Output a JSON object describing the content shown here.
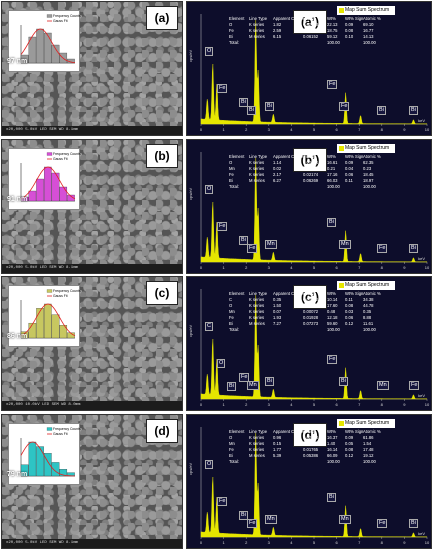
{
  "panels": [
    {
      "sem_label": "(a)",
      "spec_label": "(a’)",
      "size": "97 nm",
      "hist_color": "#9a9a9a",
      "legend": [
        "Frequency Counts",
        "Gauss Fit"
      ],
      "hist_values": [
        8,
        26,
        34,
        30,
        18,
        10,
        4
      ],
      "sem_footer": "x20,000   5.0kV   LED   SEM   WD 8.1mm",
      "spec_title": "Map Sum Spectrum",
      "table": {
        "header": [
          "Element",
          "Line Type",
          "Apparent Concentration",
          "k Ratio",
          "Wt%",
          "Wt% Sigma",
          "Atomic %"
        ],
        "rows": [
          [
            "O",
            "K series",
            "1.82",
            "0.00613",
            "22.13",
            "0.09",
            "69.10"
          ],
          [
            "Fe",
            "K series",
            "2.59",
            "0.02585",
            "18.75",
            "0.08",
            "16.77"
          ],
          [
            "Bi",
            "M series",
            "6.15",
            "0.06152",
            "59.12",
            "0.10",
            "14.13"
          ],
          [
            "Total:",
            "",
            "",
            "",
            "100.00",
            "",
            "100.00"
          ]
        ]
      },
      "peaks": [
        "O",
        "Fe",
        "Bi",
        "Bi",
        "Bi",
        "Fe",
        "Fe",
        "Bi",
        "Bi"
      ]
    },
    {
      "sem_label": "(b)",
      "spec_label": "(b’)",
      "size": "91 nm",
      "hist_color": "#d64fd6",
      "legend": [
        "Frequency Counts",
        "Gauss Fit"
      ],
      "hist_values": [
        4,
        10,
        22,
        34,
        28,
        14,
        6
      ],
      "sem_footer": "x20,000   5.0kV   LED   SEM   WD 8.1mm",
      "spec_title": "Map Sum Spectrum",
      "table": {
        "header": [
          "Element",
          "Line Type",
          "Apparent Concentration",
          "k Ratio",
          "Wt%",
          "Wt% Sigma",
          "Atomic %"
        ],
        "rows": [
          [
            "O",
            "K series",
            "1.14",
            "0.00384",
            "16.61",
            "0.09",
            "62.35"
          ],
          [
            "Mn",
            "K series",
            "0.02",
            "0.00025",
            "0.21",
            "0.04",
            "0.23"
          ],
          [
            "Fe",
            "K series",
            "2.17",
            "0.02174",
            "17.16",
            "0.06",
            "18.45"
          ],
          [
            "Bi",
            "M series",
            "6.27",
            "0.06269",
            "66.03",
            "0.11",
            "18.97"
          ],
          [
            "Total:",
            "",
            "",
            "",
            "100.00",
            "",
            "100.00"
          ]
        ]
      },
      "peaks": [
        "O",
        "Fe",
        "Bi",
        "Mn",
        "Fe",
        "Bi",
        "Mn",
        "Fe",
        "Bi"
      ]
    },
    {
      "sem_label": "(c)",
      "spec_label": "(c’)",
      "size": "86 nm",
      "hist_color": "#c7c760",
      "legend": [
        "Frequency Counts",
        "Gauss Fit"
      ],
      "hist_values": [
        6,
        14,
        28,
        32,
        22,
        12,
        5
      ],
      "sem_footer": "x20,000   10.0kV   LED   SEM   WD 8.0mm",
      "spec_title": "Map Sum Spectrum",
      "table": {
        "header": [
          "Element",
          "Line Type",
          "Apparent Concentration",
          "k Ratio",
          "Wt%",
          "Wt% Sigma",
          "Atomic %"
        ],
        "rows": [
          [
            "C",
            "K series",
            "0.35",
            "0.00352",
            "10.14",
            "0.11",
            "34.38"
          ],
          [
            "O",
            "K series",
            "1.50",
            "0.00506",
            "17.60",
            "0.08",
            "44.78"
          ],
          [
            "Mn",
            "K series",
            "0.07",
            "0.00072",
            "0.48",
            "0.03",
            "0.35"
          ],
          [
            "Fe",
            "K series",
            "1.93",
            "0.01928",
            "12.18",
            "0.06",
            "8.88"
          ],
          [
            "Bi",
            "M series",
            "7.27",
            "0.07273",
            "59.60",
            "0.12",
            "11.61"
          ],
          [
            "Total:",
            "",
            "",
            "",
            "100.00",
            "",
            "100.00"
          ]
        ]
      },
      "peaks": [
        "C",
        "O",
        "Fe",
        "Bi",
        "Mn",
        "Fe",
        "Bi",
        "Mn",
        "Fe",
        "Bi"
      ]
    },
    {
      "sem_label": "(d)",
      "spec_label": "(d’)",
      "size": "79 nm",
      "hist_color": "#2ec4c4",
      "legend": [
        "Frequency Counts",
        "Gauss Fit"
      ],
      "hist_values": [
        10,
        30,
        26,
        20,
        12,
        6,
        3
      ],
      "sem_footer": "x20,000   5.0kV   LED   SEM   WD 8.1mm",
      "spec_title": "Map Sum Spectrum",
      "table": {
        "header": [
          "Element",
          "Line Type",
          "Apparent Concentration",
          "k Ratio",
          "Wt%",
          "Wt% Sigma",
          "Atomic %"
        ],
        "rows": [
          [
            "O",
            "K series",
            "0.96",
            "0.00323",
            "16.37",
            "0.09",
            "61.86"
          ],
          [
            "Mn",
            "K series",
            "0.15",
            "0.00146",
            "1.40",
            "0.05",
            "1.54"
          ],
          [
            "Fe",
            "K series",
            "1.77",
            "0.01765",
            "16.14",
            "0.08",
            "17.48"
          ],
          [
            "Bi",
            "M series",
            "5.39",
            "0.05386",
            "66.09",
            "0.12",
            "19.12"
          ],
          [
            "Total:",
            "",
            "",
            "",
            "100.00",
            "",
            "100.00"
          ]
        ]
      },
      "peaks": [
        "O",
        "Fe",
        "Bi",
        "Mn",
        "Fe",
        "Bi",
        "Mn",
        "Fe",
        "Bi"
      ]
    }
  ],
  "axis": {
    "x_unit": "keV",
    "y_unit": "cps/eV",
    "x_ticks": [
      "0",
      "1",
      "2",
      "3",
      "4",
      "5",
      "6",
      "7",
      "8",
      "9",
      "10"
    ]
  }
}
